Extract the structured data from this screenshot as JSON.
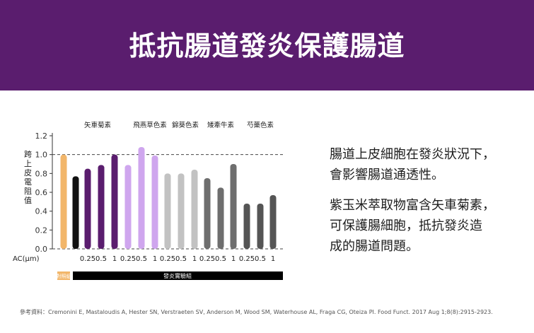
{
  "header": {
    "title": "抵抗腸道發炎保護腸道",
    "bg_color": "#5a1d6e"
  },
  "chart_data": {
    "type": "bar",
    "ylabel": "跨上皮電阻值",
    "xlabel": "AC(μm)",
    "ylim": [
      0,
      1.2
    ],
    "y_ticks": [
      "0.0",
      "0.2",
      "0.4",
      "0.6",
      "0.8",
      "1.0",
      "1.2"
    ],
    "reference_line": 1.0,
    "compound_labels": [
      "矢車菊素",
      "飛燕草色素",
      "錦葵色素",
      "矮牽牛素",
      "芍藥色素"
    ],
    "control_label": "對照組",
    "group_label": "發炎實驗組",
    "bars": [
      {
        "value": 1.0,
        "tick": "",
        "color": "#f2b66a"
      },
      {
        "value": 0.77,
        "tick": "",
        "color": "#111111"
      },
      {
        "value": 0.85,
        "tick": "0.25",
        "color": "#5a1d6e"
      },
      {
        "value": 0.89,
        "tick": "0.5",
        "color": "#5a1d6e"
      },
      {
        "value": 1.0,
        "tick": "1",
        "color": "#5a1d6e"
      },
      {
        "value": 0.89,
        "tick": "0.25",
        "color": "#cfa6ee"
      },
      {
        "value": 1.08,
        "tick": "0.5",
        "color": "#cfa6ee"
      },
      {
        "value": 0.99,
        "tick": "1",
        "color": "#cfa6ee"
      },
      {
        "value": 0.8,
        "tick": "0.25",
        "color": "#c2c2c2"
      },
      {
        "value": 0.8,
        "tick": "0.5",
        "color": "#c2c2c2"
      },
      {
        "value": 0.84,
        "tick": "1",
        "color": "#c2c2c2"
      },
      {
        "value": 0.75,
        "tick": "0.25",
        "color": "#6e6e6e"
      },
      {
        "value": 0.65,
        "tick": "0.5",
        "color": "#6e6e6e"
      },
      {
        "value": 0.9,
        "tick": "1",
        "color": "#6e6e6e"
      },
      {
        "value": 0.48,
        "tick": "0.25",
        "color": "#555555"
      },
      {
        "value": 0.48,
        "tick": "0.5",
        "color": "#555555"
      },
      {
        "value": 0.57,
        "tick": "1",
        "color": "#555555"
      }
    ],
    "control_color": "#f2b66a",
    "group_color": "#000000"
  },
  "text": {
    "para1": "腸道上皮細胞在發炎狀況下，\n會影響腸道通透性。",
    "para2": "紫玉米萃取物富含矢車菊素，\n可保護腸細胞，抵抗發炎造\n成的腸道問題。"
  },
  "reference": "參考資料：Cremonini E, Mastaloudis A, Hester SN, Verstraeten SV, Anderson M, Wood SM, Waterhouse AL, Fraga CG, Oteiza PI. Food Funct. 2017 Aug 1;8(8):2915-2923."
}
